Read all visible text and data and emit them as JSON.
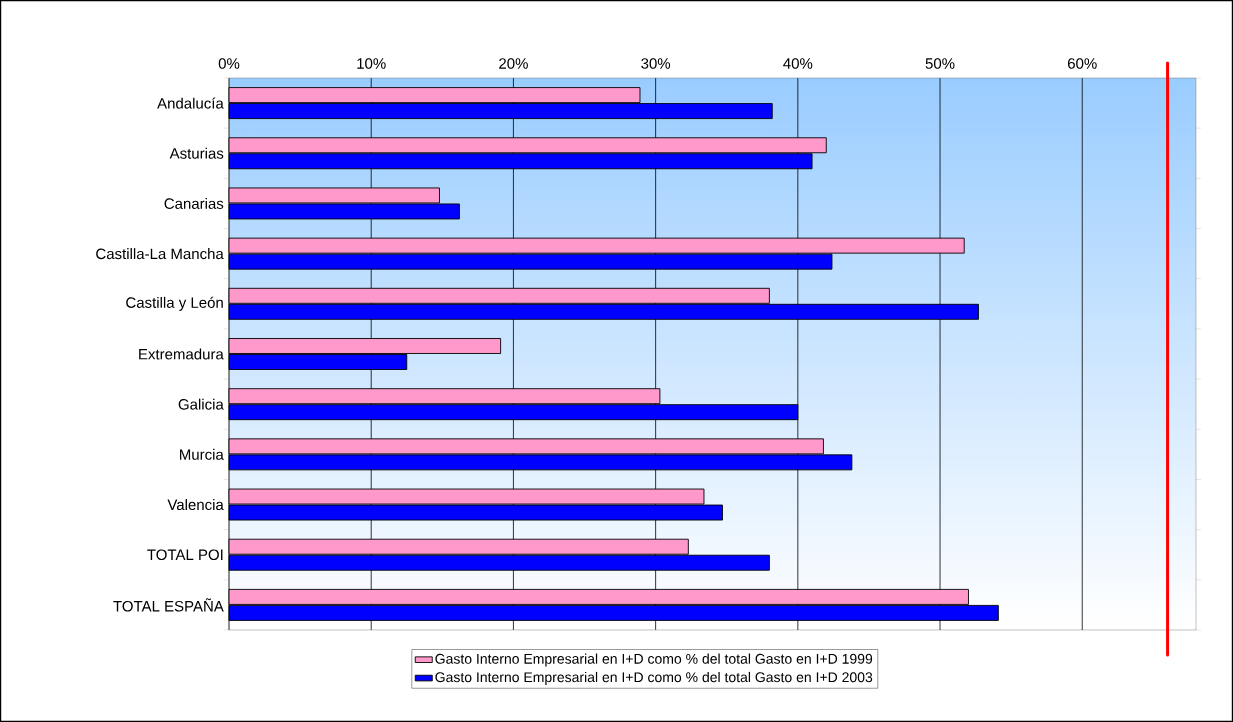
{
  "chart_data": {
    "type": "bar",
    "orientation": "horizontal",
    "categories": [
      "Andalucía",
      "Asturias",
      "Canarias",
      "Castilla-La Mancha",
      "Castilla y León",
      "Extremadura",
      "Galicia",
      "Murcia",
      "Valencia",
      "TOTAL POI",
      "TOTAL ESPAÑA"
    ],
    "series": [
      {
        "name": "Gasto Interno Empresarial en I+D como % del total Gasto en I+D   1999",
        "color": "#ff99cc",
        "values": [
          28.9,
          42.0,
          14.8,
          51.7,
          38.0,
          19.1,
          30.3,
          41.8,
          33.4,
          32.3,
          52.0
        ]
      },
      {
        "name": "Gasto Interno Empresarial en I+D como % del total Gasto en I+D   2003",
        "color": "#0000ff",
        "values": [
          38.2,
          41.0,
          16.2,
          42.4,
          52.7,
          12.5,
          40.0,
          43.8,
          34.7,
          38.0,
          54.1
        ]
      }
    ],
    "xlim": [
      0,
      68
    ],
    "xticks": [
      {
        "value": 0,
        "label": "0%"
      },
      {
        "value": 10,
        "label": "10%"
      },
      {
        "value": 20,
        "label": "20%"
      },
      {
        "value": 30,
        "label": "30%"
      },
      {
        "value": 40,
        "label": "40%"
      },
      {
        "value": 50,
        "label": "50%"
      },
      {
        "value": 60,
        "label": "60%"
      }
    ],
    "ref_lines": [
      {
        "axis": "x",
        "value": 66,
        "color": "#ff0000"
      }
    ],
    "grid": "x",
    "legend": "bottom"
  }
}
